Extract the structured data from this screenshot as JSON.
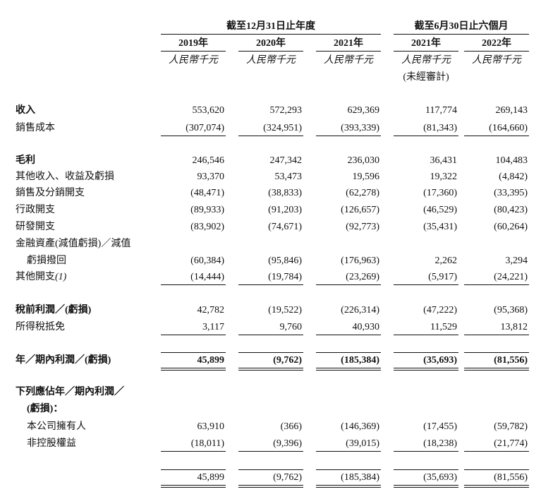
{
  "header": {
    "groups": [
      {
        "title": "截至12月31日止年度",
        "columns": [
          0,
          1,
          2
        ]
      },
      {
        "title": "截至6月30日止六個月",
        "columns": [
          3,
          4
        ]
      }
    ],
    "columns": [
      {
        "year": "2019年",
        "unit": "人民幣千元"
      },
      {
        "year": "2020年",
        "unit": "人民幣千元"
      },
      {
        "year": "2021年",
        "unit": "人民幣千元"
      },
      {
        "year": "2021年",
        "unit": "人民幣千元",
        "note": "(未經審計)"
      },
      {
        "year": "2022年",
        "unit": "人民幣千元"
      }
    ]
  },
  "table": {
    "rows": [
      {
        "label": [
          "收入"
        ],
        "bold": true,
        "values": [
          "553,620",
          "572,293",
          "629,369",
          "117,774",
          "269,143"
        ]
      },
      {
        "label": [
          "銷售成本"
        ],
        "rule": "single",
        "values": [
          "(307,074)",
          "(324,951)",
          "(393,339)",
          "(81,343)",
          "(164,660)"
        ]
      },
      {
        "label": [
          "毛利"
        ],
        "bold": true,
        "values": [
          "246,546",
          "247,342",
          "236,030",
          "36,431",
          "104,483"
        ]
      },
      {
        "label": [
          "其他收入、收益及虧損"
        ],
        "values": [
          "93,370",
          "53,473",
          "19,596",
          "19,322",
          "(4,842)"
        ]
      },
      {
        "label": [
          "銷售及分銷開支"
        ],
        "values": [
          "(48,471)",
          "(38,833)",
          "(62,278)",
          "(17,360)",
          "(33,395)"
        ]
      },
      {
        "label": [
          "行政開支"
        ],
        "values": [
          "(89,933)",
          "(91,203)",
          "(126,657)",
          "(46,529)",
          "(80,423)"
        ]
      },
      {
        "label": [
          "研發開支"
        ],
        "values": [
          "(83,902)",
          "(74,671)",
          "(92,773)",
          "(35,431)",
          "(60,264)"
        ]
      },
      {
        "label": [
          "金融資產(減值虧損)／減值",
          "虧損撥回"
        ],
        "values": [
          "(60,384)",
          "(95,846)",
          "(176,963)",
          "2,262",
          "3,294"
        ]
      },
      {
        "label": [
          "其他開支"
        ],
        "note": "(1)",
        "rule": "single",
        "values": [
          "(14,444)",
          "(19,784)",
          "(23,269)",
          "(5,917)",
          "(24,221)"
        ]
      },
      {
        "label": [
          "稅前利潤／(虧損)"
        ],
        "bold": true,
        "values": [
          "42,782",
          "(19,522)",
          "(226,314)",
          "(47,222)",
          "(95,368)"
        ]
      },
      {
        "label": [
          "所得稅抵免"
        ],
        "rule": "single",
        "values": [
          "3,117",
          "9,760",
          "40,930",
          "11,529",
          "13,812"
        ]
      },
      {
        "label": [
          "年／期內利潤／(虧損)"
        ],
        "bold": true,
        "bold_values": true,
        "rule": "double",
        "values": [
          "45,899",
          "(9,762)",
          "(185,384)",
          "(35,693)",
          "(81,556)"
        ]
      },
      {
        "label": [
          "下列應佔年／期內利潤／",
          "(虧損)："
        ],
        "bold": true,
        "values": []
      },
      {
        "label": [
          "本公司擁有人"
        ],
        "indent": true,
        "values": [
          "63,910",
          "(366)",
          "(146,369)",
          "(17,455)",
          "(59,782)"
        ]
      },
      {
        "label": [
          "非控股權益"
        ],
        "indent": true,
        "rule": "single",
        "values": [
          "(18,011)",
          "(9,396)",
          "(39,015)",
          "(18,238)",
          "(21,774)"
        ]
      },
      {
        "label": [],
        "rule": "double",
        "values": [
          "45,899",
          "(9,762)",
          "(185,384)",
          "(35,693)",
          "(81,556)"
        ]
      }
    ]
  }
}
